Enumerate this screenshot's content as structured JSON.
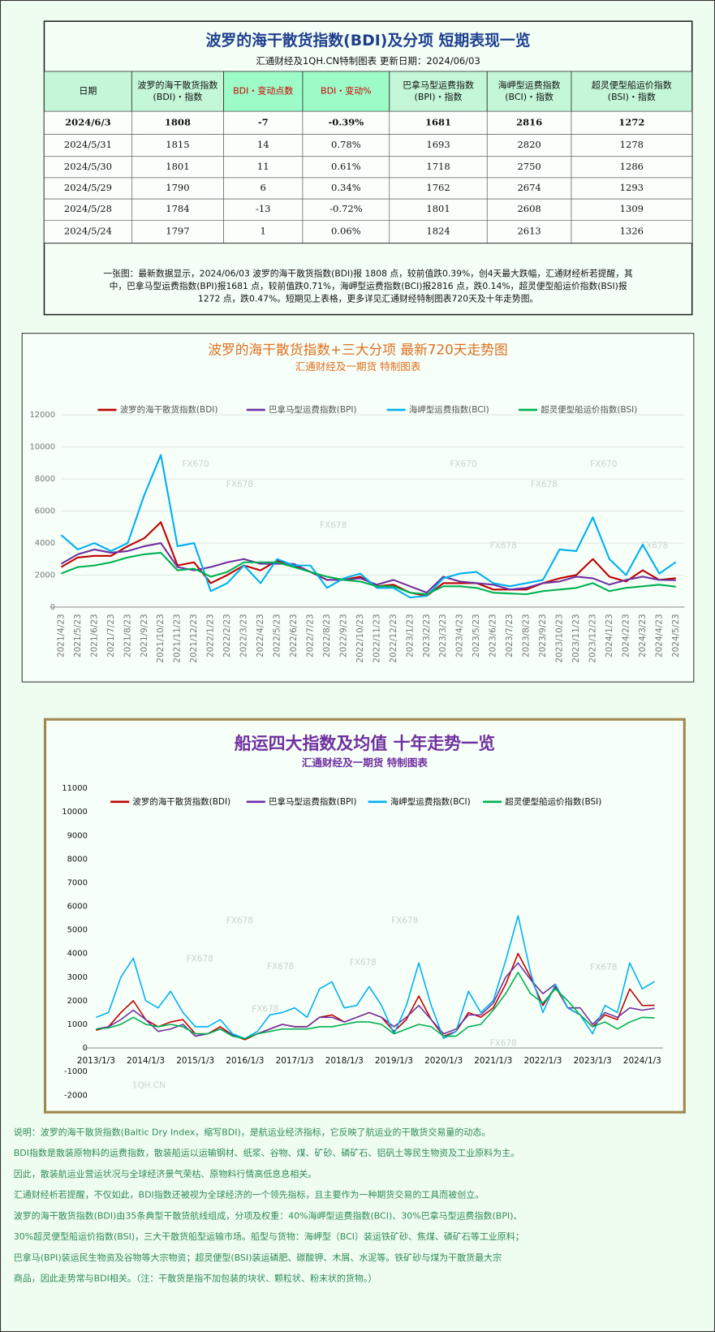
{
  "table": {
    "title": "波罗的海干散货指数(BDI)及分项  短期表现一览",
    "subtitle": "汇通财经及1QH.CN特制图表    更新日期：2024/06/03",
    "header": [
      [
        "日期"
      ],
      [
        "波罗的海干散货指数",
        "(BDI)・指数"
      ],
      [
        "BDI・变动点数"
      ],
      [
        "BDI・变动%"
      ],
      [
        "巴拿马型运费指数",
        "(BPI)・指数"
      ],
      [
        "海岬型运费指数",
        "(BCI)・指数"
      ],
      [
        "超灵便型船运价指数",
        "(BSI)・指数"
      ]
    ],
    "rows": [
      [
        "2024/6/3",
        "1808",
        "-7",
        "-0.39%",
        "1681",
        "2816",
        "1272"
      ],
      [
        "2024/5/31",
        "1815",
        "14",
        "0.78%",
        "1693",
        "2820",
        "1278"
      ],
      [
        "2024/5/30",
        "1801",
        "11",
        "0.61%",
        "1718",
        "2750",
        "1286"
      ],
      [
        "2024/5/29",
        "1790",
        "6",
        "0.34%",
        "1762",
        "2674",
        "1293"
      ],
      [
        "2024/5/28",
        "1784",
        "-13",
        "-0.72%",
        "1801",
        "2608",
        "1309"
      ],
      [
        "2024/5/24",
        "1797",
        "1",
        "0.06%",
        "1824",
        "2613",
        "1326"
      ]
    ],
    "note": [
      "一张图：最新数据显示，2024/06/03 波罗的海干散货指数(BDI)报 1808 点，较前值跌0.39%，创4天最大跌幅，汇通财经析若提醒，其",
      "中，巴拿马型运费指数(BPI)报1681 点，较前值跌0.71%，海岬型运费指数(BCI)报2816 点，跌0.14%，超灵便型船运价指数(BSI)报",
      "1272 点，跌0.47%。短期见上表格，更多详见汇通财经特制图表720天及十年走势图。"
    ]
  },
  "chart_data": [
    {
      "type": "line",
      "title": "波罗的海干散货指数+三大分项  最新720天走势图",
      "subtitle": "汇通财经及一期货  特制图表",
      "watermarks": [
        "FX670",
        "FX678",
        "FX678",
        "FX670",
        "FX678",
        "FX678",
        "FX670",
        "FX678"
      ],
      "categories": [
        "2021/4/23",
        "2021/5/23",
        "2021/6/23",
        "2021/7/23",
        "2021/8/23",
        "2021/9/23",
        "2021/10/23",
        "2021/11/23",
        "2021/12/23",
        "2022/1/23",
        "2022/2/23",
        "2022/3/23",
        "2022/4/23",
        "2022/5/23",
        "2022/6/23",
        "2022/7/23",
        "2022/8/23",
        "2022/9/23",
        "2022/10/23",
        "2022/11/23",
        "2022/12/23",
        "2023/1/23",
        "2023/2/23",
        "2023/3/23",
        "2023/4/23",
        "2023/5/23",
        "2023/6/23",
        "2023/7/23",
        "2023/8/23",
        "2023/9/23",
        "2023/10/23",
        "2023/11/23",
        "2023/12/23",
        "2024/1/23",
        "2024/2/23",
        "2024/3/23",
        "2024/4/23",
        "2024/5/23"
      ],
      "ylim": [
        0,
        12000
      ],
      "yticks": [
        0,
        2000,
        4000,
        6000,
        8000,
        10000,
        12000
      ],
      "grid": true,
      "legend": "top",
      "series": [
        {
          "name": "波罗的海干散货指数(BDI)",
          "color": "#c00000",
          "values": [
            2500,
            3100,
            3200,
            3200,
            3800,
            4300,
            5300,
            2600,
            2800,
            1500,
            2000,
            2600,
            2300,
            2900,
            2600,
            2200,
            1700,
            1700,
            1900,
            1300,
            1400,
            900,
            700,
            1500,
            1500,
            1500,
            1100,
            1100,
            1100,
            1500,
            1800,
            2000,
            3000,
            1900,
            1600,
            2300,
            1700,
            1808
          ]
        },
        {
          "name": "巴拿马型运费指数(BPI)",
          "color": "#7030a0",
          "values": [
            2700,
            3300,
            3600,
            3400,
            3500,
            3800,
            4000,
            2500,
            2300,
            2500,
            2800,
            3000,
            2700,
            2700,
            2700,
            2200,
            1700,
            1700,
            1800,
            1400,
            1700,
            1300,
            900,
            1900,
            1600,
            1500,
            1400,
            1100,
            1200,
            1500,
            1600,
            1900,
            1800,
            1400,
            1700,
            1900,
            1700,
            1681
          ]
        },
        {
          "name": "海岬型运费指数(BCI)",
          "color": "#00b0f0",
          "values": [
            4500,
            3600,
            4000,
            3500,
            4000,
            7000,
            9500,
            3800,
            4000,
            1000,
            1500,
            2600,
            1500,
            3000,
            2600,
            2600,
            1200,
            1800,
            2100,
            1200,
            1200,
            600,
            700,
            1800,
            2100,
            2200,
            1500,
            1300,
            1500,
            1700,
            3600,
            3500,
            5600,
            3000,
            2000,
            3900,
            2100,
            2816
          ]
        },
        {
          "name": "超灵便型船运价指数(BSI)",
          "color": "#00b050",
          "values": [
            2100,
            2500,
            2600,
            2800,
            3100,
            3300,
            3400,
            2300,
            2400,
            1900,
            2200,
            2800,
            2800,
            2800,
            2500,
            2200,
            1900,
            1700,
            1600,
            1300,
            1300,
            900,
            800,
            1300,
            1300,
            1200,
            900,
            850,
            800,
            1000,
            1100,
            1200,
            1500,
            1000,
            1200,
            1300,
            1400,
            1272
          ]
        }
      ]
    },
    {
      "type": "line",
      "title": "船运四大指数及均值 十年走势一览",
      "subtitle": "汇通财经及一期货 特制图表",
      "watermarks": [
        "FX678",
        "FX678",
        "FX678",
        "FX678",
        "FX678",
        "FX678",
        "FX678",
        "FX678",
        "1QH.CN"
      ],
      "categories": [
        "2013/1/3",
        null,
        null,
        null,
        "2014/1/3",
        null,
        null,
        null,
        "2015/1/3",
        null,
        null,
        null,
        "2016/1/3",
        null,
        null,
        null,
        "2017/1/3",
        null,
        null,
        null,
        "2018/1/3",
        null,
        null,
        null,
        "2019/1/3",
        null,
        null,
        null,
        "2020/1/3",
        null,
        null,
        null,
        "2021/1/3",
        null,
        null,
        null,
        "2022/1/3",
        null,
        null,
        null,
        "2023/1/3",
        null,
        null,
        null,
        "2024/1/3",
        null
      ],
      "ylim": [
        -2000,
        11000
      ],
      "yticks": [
        -2000,
        -1000,
        0,
        1000,
        2000,
        3000,
        4000,
        5000,
        6000,
        7000,
        8000,
        9000,
        10000,
        11000
      ],
      "grid": false,
      "legend": "top",
      "series": [
        {
          "name": "波罗的海干散货指数(BDI)",
          "color": "#c00000",
          "values": [
            750,
            900,
            1500,
            2000,
            1200,
            900,
            1100,
            1200,
            600,
            600,
            900,
            550,
            350,
            600,
            800,
            1000,
            900,
            900,
            1300,
            1400,
            1100,
            1300,
            1500,
            1300,
            700,
            1200,
            2200,
            1200,
            500,
            700,
            1500,
            1300,
            1700,
            2700,
            4000,
            3000,
            1800,
            2600,
            1700,
            1400,
            900,
            1400,
            1200,
            2500,
            1800,
            1808
          ]
        },
        {
          "name": "巴拿马型运费指数(BPI)",
          "color": "#7030a0",
          "values": [
            800,
            900,
            1200,
            1600,
            1200,
            700,
            800,
            1000,
            500,
            600,
            800,
            550,
            400,
            600,
            800,
            1000,
            900,
            900,
            1300,
            1300,
            1100,
            1300,
            1500,
            1300,
            900,
            1300,
            1800,
            1200,
            600,
            800,
            1400,
            1400,
            1900,
            3000,
            3600,
            2900,
            2300,
            2700,
            1700,
            1700,
            1000,
            1500,
            1300,
            1700,
            1600,
            1681
          ]
        },
        {
          "name": "海岬型运费指数(BCI)",
          "color": "#00b0f0",
          "values": [
            1300,
            1500,
            3000,
            3800,
            2000,
            1700,
            2400,
            1500,
            900,
            900,
            1200,
            600,
            400,
            700,
            1400,
            1500,
            1700,
            1300,
            2500,
            2800,
            1700,
            1800,
            2600,
            1800,
            600,
            1800,
            3600,
            1800,
            400,
            700,
            2400,
            1500,
            2000,
            3700,
            5600,
            3200,
            1500,
            2700,
            1700,
            1400,
            600,
            1800,
            1500,
            3600,
            2500,
            2816
          ]
        },
        {
          "name": "超灵便型船运价指数(BSI)",
          "color": "#00b050",
          "values": [
            800,
            850,
            1000,
            1300,
            1000,
            900,
            1000,
            900,
            600,
            600,
            800,
            500,
            400,
            600,
            700,
            800,
            800,
            800,
            900,
            900,
            1000,
            1100,
            1100,
            1000,
            600,
            800,
            1000,
            900,
            500,
            500,
            900,
            1000,
            1600,
            2300,
            3200,
            2300,
            1900,
            2500,
            2000,
            1400,
            900,
            1100,
            800,
            1100,
            1300,
            1272
          ]
        }
      ]
    }
  ],
  "explanation": [
    "说明：波罗的海干散货指数(Baltic Dry Index，缩写BDI)，是航运业经济指标，它反映了航运业的干散货交易量的动态。",
    "BDI指数是散装原物料的运费指数，散装船运以运输钢材、纸浆、谷物、煤、矿砂、磷矿石、铝矾土等民生物资及工业原料为主。",
    "因此，散装航运业营运状况与全球经济景气荣枯、原物料行情高低息息相关。",
    "汇通财经析若提醒，不仅如此，BDI指数还被视为全球经济的一个领先指标，且主要作为一种期货交易的工具而被创立。",
    "波罗的海干散货指数(BDI)由35条典型干散货航线组成，分项及权重：40%海岬型运费指数(BCI)、30%巴拿马型运费指数(BPI)、",
    "30%超灵便型船运价指数(BSI)，三大干散货船型运输市场。船型与货物：海岬型（BCI）装运铁矿砂、焦煤、磷矿石等工业原料；",
    "巴拿马(BPI)装运民生物资及谷物等大宗物资；超灵便型(BSI)装运磷肥、碳酸钾、木屑、水泥等。铁矿砂与煤为干散货最大宗",
    "商品，因此走势常与BDI相关。（注：干散货是指不加包装的块状、颗粒状、粉末状的货物。）"
  ]
}
